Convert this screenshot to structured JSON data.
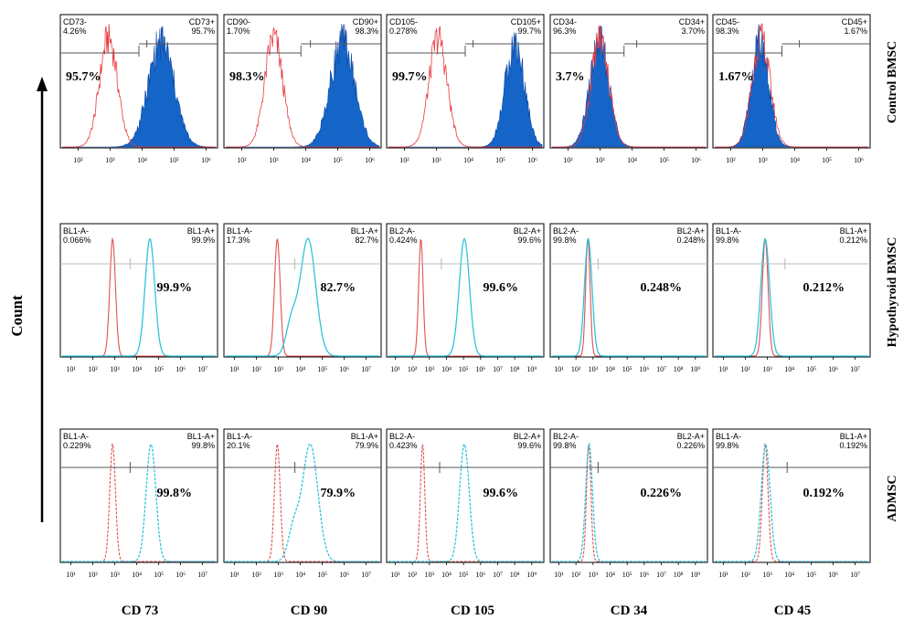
{
  "y_axis_label": "Count",
  "colors": {
    "control_isotype": "#e8393f",
    "control_fill": "#1565c8",
    "control_fill_dark": "#0d47a1",
    "isotype_line": "#e05050",
    "marker_line": "#2fc4dc",
    "gate_line": "#555555",
    "gate_line_light": "#bbbbbb"
  },
  "columns": [
    "CD 73",
    "CD 90",
    "CD 105",
    "CD 34",
    "CD 45"
  ],
  "rows": [
    "Control BMSC",
    "Hypothyroid BMSC",
    "ADMSC"
  ],
  "chart_data": [
    {
      "row": 0,
      "col": 0,
      "type": "histogram",
      "style": "filled",
      "gate_neg_label": "CD73-",
      "gate_neg_value": "4.26%",
      "gate_pos_label": "CD73+",
      "gate_pos_value": "95.7%",
      "percent_label": "95.7%",
      "percent_position": "left",
      "x_ticks": [
        "10²",
        "10³",
        "10⁴",
        "10⁵",
        "10⁶"
      ],
      "x_log_range": [
        1.5,
        6.3
      ],
      "gate_log": 3.9,
      "iso_peak_log": 2.95,
      "marker_peak_log": 4.6,
      "marker_sd": 0.4
    },
    {
      "row": 0,
      "col": 1,
      "type": "histogram",
      "style": "filled",
      "gate_neg_label": "CD90-",
      "gate_neg_value": "1.70%",
      "gate_pos_label": "CD90+",
      "gate_pos_value": "98.3%",
      "percent_label": "98.3%",
      "percent_position": "left",
      "x_ticks": [
        "10²",
        "10³",
        "10⁴",
        "10⁵",
        "10⁶"
      ],
      "x_log_range": [
        1.5,
        6.3
      ],
      "gate_log": 3.85,
      "iso_peak_log": 3.0,
      "marker_peak_log": 5.15,
      "marker_sd": 0.38
    },
    {
      "row": 0,
      "col": 2,
      "type": "histogram",
      "style": "filled",
      "gate_neg_label": "CD105-",
      "gate_neg_value": "0.278%",
      "gate_pos_label": "CD105+",
      "gate_pos_value": "99.7%",
      "percent_label": "99.7%",
      "percent_position": "left",
      "x_ticks": [
        "10²",
        "10³",
        "10⁴",
        "10⁵",
        "10⁶"
      ],
      "x_log_range": [
        1.5,
        6.3
      ],
      "gate_log": 3.9,
      "iso_peak_log": 3.05,
      "marker_peak_log": 5.45,
      "marker_sd": 0.3
    },
    {
      "row": 0,
      "col": 3,
      "type": "histogram",
      "style": "filled",
      "gate_neg_label": "CD34-",
      "gate_neg_value": "96.3%",
      "gate_pos_label": "CD34+",
      "gate_pos_value": "3.70%",
      "percent_label": "3.7%",
      "percent_position": "left",
      "x_ticks": [
        "10²",
        "10³",
        "10⁴",
        "10⁵",
        "10⁶"
      ],
      "x_log_range": [
        1.5,
        6.3
      ],
      "gate_log": 3.75,
      "iso_peak_log": 3.0,
      "marker_peak_log": 2.98,
      "marker_sd": 0.3
    },
    {
      "row": 0,
      "col": 4,
      "type": "histogram",
      "style": "filled",
      "gate_neg_label": "CD45-",
      "gate_neg_value": "98.3%",
      "gate_pos_label": "CD45+",
      "gate_pos_value": "1.67%",
      "percent_label": "1.67%",
      "percent_position": "left",
      "x_ticks": [
        "10²",
        "10³",
        "10⁴",
        "10⁵",
        "10⁶"
      ],
      "x_log_range": [
        1.5,
        6.3
      ],
      "gate_log": 3.6,
      "iso_peak_log": 2.95,
      "marker_peak_log": 2.92,
      "marker_sd": 0.27
    },
    {
      "row": 1,
      "col": 0,
      "type": "histogram",
      "style": "line",
      "gate_neg_label": "BL1-A-",
      "gate_neg_value": "0.066%",
      "gate_pos_label": "BL1-A+",
      "gate_pos_value": "99.9%",
      "percent_label": "99.9%",
      "percent_position": "right",
      "x_ticks": [
        "10¹",
        "10²",
        "10³",
        "10⁴",
        "10⁵",
        "10⁶",
        "10⁷"
      ],
      "x_log_range": [
        0.6,
        7.6
      ],
      "gate_log": 3.7,
      "iso_peak_log": 2.9,
      "marker_peak_log": 4.6,
      "marker_sd": 0.22
    },
    {
      "row": 1,
      "col": 1,
      "type": "histogram",
      "style": "line",
      "gate_neg_label": "BL1-A-",
      "gate_neg_value": "17.3%",
      "gate_pos_label": "BL1-A+",
      "gate_pos_value": "82.7%",
      "percent_label": "82.7%",
      "percent_position": "right",
      "x_ticks": [
        "10¹",
        "10²",
        "10³",
        "10⁴",
        "10⁵",
        "10⁶",
        "10⁷"
      ],
      "x_log_range": [
        0.6,
        7.6
      ],
      "gate_log": 3.75,
      "iso_peak_log": 2.95,
      "marker_peak_log": 4.35,
      "marker_sd": 0.35
    },
    {
      "row": 1,
      "col": 2,
      "type": "histogram",
      "style": "line",
      "gate_neg_label": "BL2-A-",
      "gate_neg_value": "0.424%",
      "gate_pos_label": "BL2-A+",
      "gate_pos_value": "99.6%",
      "percent_label": "99.6%",
      "percent_position": "right",
      "x_ticks": [
        "10¹",
        "10²",
        "10³",
        "10⁴",
        "10⁵",
        "10⁶",
        "10⁷",
        "10⁸",
        "10⁹"
      ],
      "x_log_range": [
        0.6,
        9.6
      ],
      "gate_log": 3.7,
      "iso_peak_log": 2.5,
      "marker_peak_log": 5.05,
      "marker_sd": 0.3
    },
    {
      "row": 1,
      "col": 3,
      "type": "histogram",
      "style": "line",
      "gate_neg_label": "BL2-A-",
      "gate_neg_value": "99.8%",
      "gate_pos_label": "BL2-A+",
      "gate_pos_value": "0.248%",
      "percent_label": "0.248%",
      "percent_position": "right",
      "x_ticks": [
        "10¹",
        "10²",
        "10³",
        "10⁴",
        "10⁵",
        "10⁶",
        "10⁷",
        "10⁸",
        "10⁹"
      ],
      "x_log_range": [
        0.6,
        9.6
      ],
      "gate_log": 3.3,
      "iso_peak_log": 2.7,
      "marker_peak_log": 2.72,
      "marker_sd": 0.22
    },
    {
      "row": 1,
      "col": 4,
      "type": "histogram",
      "style": "line",
      "gate_neg_label": "BL1-A-",
      "gate_neg_value": "99.8%",
      "gate_pos_label": "BL1-A+",
      "gate_pos_value": "0.212%",
      "percent_label": "0.212%",
      "percent_position": "right",
      "x_ticks": [
        "10¹",
        "10²",
        "10³",
        "10⁴",
        "10⁵",
        "10⁶",
        "10⁷"
      ],
      "x_log_range": [
        0.6,
        7.6
      ],
      "gate_log": 3.8,
      "iso_peak_log": 2.9,
      "marker_peak_log": 2.9,
      "marker_sd": 0.2
    },
    {
      "row": 2,
      "col": 0,
      "type": "histogram",
      "style": "dashed",
      "gate_neg_label": "BL1-A-",
      "gate_neg_value": "0.229%",
      "gate_pos_label": "BL1-A+",
      "gate_pos_value": "99.8%",
      "percent_label": "99.8%",
      "percent_position": "right",
      "x_ticks": [
        "10¹",
        "10²",
        "10³",
        "10⁴",
        "10⁵",
        "10⁶",
        "10⁷"
      ],
      "x_log_range": [
        0.6,
        7.6
      ],
      "gate_log": 3.7,
      "iso_peak_log": 2.9,
      "marker_peak_log": 4.65,
      "marker_sd": 0.22
    },
    {
      "row": 2,
      "col": 1,
      "type": "histogram",
      "style": "dashed",
      "gate_neg_label": "BL1-A-",
      "gate_neg_value": "20.1%",
      "gate_pos_label": "BL1-A+",
      "gate_pos_value": "79.9%",
      "percent_label": "79.9%",
      "percent_position": "right",
      "x_ticks": [
        "10¹",
        "10²",
        "10³",
        "10⁴",
        "10⁵",
        "10⁶",
        "10⁷"
      ],
      "x_log_range": [
        0.6,
        7.6
      ],
      "gate_log": 3.75,
      "iso_peak_log": 2.95,
      "marker_peak_log": 4.45,
      "marker_sd": 0.35
    },
    {
      "row": 2,
      "col": 2,
      "type": "histogram",
      "style": "dashed",
      "gate_neg_label": "BL2-A-",
      "gate_neg_value": "0.423%",
      "gate_pos_label": "BL2-A+",
      "gate_pos_value": "99.6%",
      "percent_label": "99.6%",
      "percent_position": "right",
      "x_ticks": [
        "10¹",
        "10²",
        "10³",
        "10⁴",
        "10⁵",
        "10⁶",
        "10⁷",
        "10⁸",
        "10⁹"
      ],
      "x_log_range": [
        0.6,
        9.6
      ],
      "gate_log": 3.6,
      "iso_peak_log": 2.6,
      "marker_peak_log": 5.05,
      "marker_sd": 0.28
    },
    {
      "row": 2,
      "col": 3,
      "type": "histogram",
      "style": "dashed",
      "gate_neg_label": "BL2-A-",
      "gate_neg_value": "99.8%",
      "gate_pos_label": "BL2-A+",
      "gate_pos_value": "0.226%",
      "percent_label": "0.226%",
      "percent_position": "right",
      "x_ticks": [
        "10¹",
        "10²",
        "10³",
        "10⁴",
        "10⁵",
        "10⁶",
        "10⁷",
        "10⁸",
        "10⁹"
      ],
      "x_log_range": [
        0.6,
        9.6
      ],
      "gate_log": 3.3,
      "iso_peak_log": 2.75,
      "marker_peak_log": 2.77,
      "marker_sd": 0.2
    },
    {
      "row": 2,
      "col": 4,
      "type": "histogram",
      "style": "dashed",
      "gate_neg_label": "BL1-A-",
      "gate_neg_value": "99.8%",
      "gate_pos_label": "BL1-A+",
      "gate_pos_value": "0.192%",
      "percent_label": "0.192%",
      "percent_position": "right",
      "x_ticks": [
        "10¹",
        "10²",
        "10³",
        "10⁴",
        "10⁵",
        "10⁶",
        "10⁷"
      ],
      "x_log_range": [
        0.6,
        7.6
      ],
      "gate_log": 3.9,
      "iso_peak_log": 2.9,
      "marker_peak_log": 2.92,
      "marker_sd": 0.2
    }
  ]
}
